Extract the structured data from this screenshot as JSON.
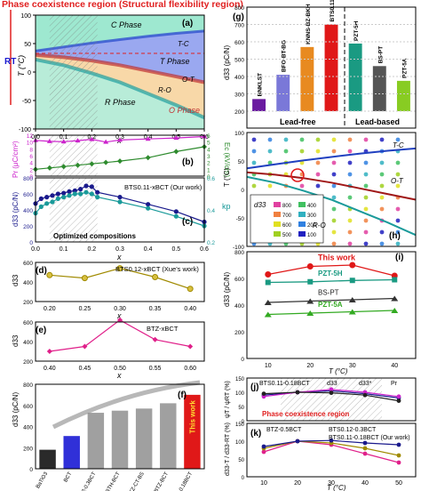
{
  "banner": {
    "title": "Phase coexistence region (Structural flexibility region)"
  },
  "left_axis": {
    "rt": "RT"
  },
  "chart_data": [
    {
      "id": "a",
      "type": "area",
      "panel": "(a)",
      "xlabel": "x",
      "ylabel": "T (°C)",
      "xlim": [
        0,
        0.6
      ],
      "ylim": [
        -100,
        100
      ],
      "xticks": [
        "0.0",
        "0.1",
        "0.2",
        "0.3",
        "0.4",
        "0.5",
        "0.6"
      ],
      "yticks": [
        "-100",
        "-50",
        "0",
        "50",
        "100"
      ],
      "regions": [
        "C Phase",
        "T Phase",
        "R Phase",
        "O Phase"
      ],
      "boundary_labels": [
        "T-C",
        "O-T",
        "R-O"
      ],
      "boundaries": {
        "T-C": {
          "x": [
            0,
            0.1,
            0.2,
            0.3,
            0.4,
            0.5,
            0.6
          ],
          "y": [
            37,
            44,
            51,
            57,
            63,
            68,
            72
          ]
        },
        "O-T": {
          "x": [
            0,
            0.1,
            0.2,
            0.3,
            0.4,
            0.5,
            0.6
          ],
          "y": [
            30,
            26,
            20,
            12,
            2,
            -8,
            -18
          ]
        },
        "R-O": {
          "x": [
            0,
            0.1,
            0.2,
            0.3,
            0.4,
            0.5,
            0.6
          ],
          "y": [
            22,
            12,
            -2,
            -18,
            -38,
            -58,
            -80
          ]
        }
      },
      "shaded_x": [
        0.05,
        0.22
      ]
    },
    {
      "id": "b",
      "type": "line",
      "panel": "(b)",
      "ylabel": "Pr (μC/cm²)",
      "y2label": "Ec (kV/cm)",
      "xlim": [
        0,
        0.6
      ],
      "ylim": [
        0,
        12
      ],
      "y2lim": [
        0,
        6
      ],
      "yticks": [
        "0",
        "2",
        "4",
        "6",
        "8",
        "10",
        "12"
      ],
      "y2ticks": [
        "0",
        "1",
        "2",
        "3",
        "4",
        "5",
        "6"
      ],
      "series": [
        {
          "name": "Pr",
          "axis": "left",
          "color": "#cc22cc",
          "x": [
            0,
            0.05,
            0.1,
            0.15,
            0.2,
            0.25,
            0.3,
            0.4,
            0.5,
            0.6
          ],
          "y": [
            10.5,
            10.2,
            10.1,
            10.4,
            10.8,
            10.0,
            10.6,
            10.9,
            11.2,
            11.6
          ]
        },
        {
          "name": "Ec",
          "axis": "right",
          "color": "#2e8b2e",
          "x": [
            0,
            0.05,
            0.1,
            0.15,
            0.2,
            0.25,
            0.3,
            0.4,
            0.5,
            0.6
          ],
          "y": [
            1.0,
            1.2,
            1.4,
            1.6,
            1.8,
            2.0,
            2.2,
            2.7,
            3.6,
            4.3
          ]
        }
      ]
    },
    {
      "id": "c",
      "type": "line",
      "panel": "(c)",
      "ylabel": "d33 (pC/N)",
      "y2label": "kp",
      "xlim": [
        0,
        0.6
      ],
      "ylim": [
        0,
        800
      ],
      "y2lim": [
        0.2,
        0.6
      ],
      "yticks": [
        "0",
        "200",
        "400",
        "600",
        "800"
      ],
      "y2ticks": [
        "0.2",
        "0.4",
        "0.6"
      ],
      "xticks": [
        "0.0",
        "0.1",
        "0.2",
        "0.3",
        "0.4",
        "0.5",
        "0.6"
      ],
      "xlabel": "x",
      "legend": "BTS0.11-xBCT (Our work)",
      "annotation": "Optimized compositions",
      "series": [
        {
          "name": "d33",
          "axis": "left",
          "color": "#1a1a8c",
          "x": [
            0,
            0.02,
            0.04,
            0.06,
            0.08,
            0.1,
            0.12,
            0.14,
            0.16,
            0.18,
            0.2,
            0.22,
            0.3,
            0.4,
            0.5,
            0.6
          ],
          "y": [
            480,
            540,
            560,
            580,
            600,
            610,
            630,
            640,
            660,
            700,
            690,
            620,
            560,
            470,
            380,
            250
          ]
        },
        {
          "name": "kp",
          "axis": "right",
          "color": "#1a9a9a",
          "x": [
            0,
            0.02,
            0.04,
            0.06,
            0.08,
            0.1,
            0.12,
            0.14,
            0.16,
            0.18,
            0.2,
            0.22,
            0.3,
            0.4,
            0.5,
            0.6
          ],
          "y": [
            0.38,
            0.42,
            0.44,
            0.45,
            0.47,
            0.48,
            0.49,
            0.5,
            0.5,
            0.51,
            0.5,
            0.48,
            0.45,
            0.41,
            0.36,
            0.3
          ]
        }
      ]
    },
    {
      "id": "d",
      "type": "line",
      "panel": "(d)",
      "ylabel": "d33",
      "xlabel": "x",
      "xlim": [
        0.18,
        0.42
      ],
      "ylim": [
        200,
        600
      ],
      "xticks": [
        "0.20",
        "0.25",
        "0.30",
        "0.35",
        "0.40"
      ],
      "yticks": [
        "200",
        "400",
        "600"
      ],
      "legend": "BTS0.12-xBCT (Xue's work)",
      "series": [
        {
          "name": "BTS0.12-xBCT",
          "color": "#a08a00",
          "x": [
            0.2,
            0.25,
            0.3,
            0.35,
            0.4
          ],
          "y": [
            470,
            440,
            540,
            450,
            330
          ]
        }
      ]
    },
    {
      "id": "e",
      "type": "line",
      "panel": "(e)",
      "ylabel": "d33",
      "xlabel": "x",
      "xlim": [
        0.38,
        0.62
      ],
      "ylim": [
        200,
        600
      ],
      "xticks": [
        "0.40",
        "0.45",
        "0.50",
        "0.55",
        "0.60"
      ],
      "yticks": [
        "200",
        "400",
        "600"
      ],
      "legend": "BTZ-xBCT",
      "series": [
        {
          "name": "BTZ-xBCT",
          "color": "#e0208a",
          "x": [
            0.4,
            0.45,
            0.5,
            0.55,
            0.6
          ],
          "y": [
            300,
            350,
            620,
            420,
            350
          ]
        }
      ]
    },
    {
      "id": "f",
      "type": "bar",
      "panel": "(f)",
      "ylabel": "d33 (pC/N)",
      "ylim": [
        0,
        800
      ],
      "yticks": [
        "0",
        "200",
        "400",
        "600",
        "800"
      ],
      "categories": [
        "BaTiO3",
        "BCT",
        "BTS0.12-0.3BCT",
        "BTH-BCT",
        "BTZ-CT-BS",
        "BTZ-BCT",
        "BTS0.11-0.18BCT"
      ],
      "values": [
        180,
        310,
        530,
        550,
        570,
        620,
        700
      ],
      "colors": [
        "#2a2a2a",
        "#3030d8",
        "#a0a0a0",
        "#a0a0a0",
        "#a0a0a0",
        "#a0a0a0",
        "#e01818"
      ],
      "highlight_label": "This work"
    },
    {
      "id": "g",
      "type": "bar",
      "panel": "(g)",
      "ylabel": "d33 (pC/N)",
      "ylim": [
        200,
        800
      ],
      "yticks": [
        "200",
        "300",
        "400",
        "500",
        "600",
        "700",
        "800"
      ],
      "groups": [
        "Lead-free",
        "Lead-based"
      ],
      "categories": [
        "BNKLST",
        "BFO-BT-BG",
        "KNNS-BZ-BKH",
        "BTS0.11-0.18BCT",
        "PZT-5H",
        "BS-PT",
        "PZT-5A"
      ],
      "values": [
        270,
        410,
        570,
        700,
        590,
        460,
        375
      ],
      "colors": [
        "#6a1aa0",
        "#7a78d8",
        "#e88a20",
        "#e01818",
        "#1a9a82",
        "#555555",
        "#88cc22"
      ]
    },
    {
      "id": "h",
      "type": "heatmap",
      "panel": "(h)",
      "xlabel": "x",
      "ylabel": "T (°C)",
      "xlim": [
        0,
        0.6
      ],
      "ylim": [
        -100,
        100
      ],
      "yticks": [
        "-100",
        "-50",
        "0",
        "50",
        "100"
      ],
      "legend_title": "d33",
      "legend_values": [
        "800",
        "700",
        "600",
        "500",
        "400",
        "300",
        "200",
        "100"
      ],
      "boundary_labels": [
        "T-C",
        "O-T",
        "R-O"
      ]
    },
    {
      "id": "i",
      "type": "line",
      "panel": "(i)",
      "ylabel": "d33 (pC/N)",
      "xlabel": "T (°C)",
      "xlim": [
        5,
        45
      ],
      "ylim": [
        0,
        800
      ],
      "xticks": [
        "10",
        "20",
        "30",
        "40"
      ],
      "yticks": [
        "0",
        "200",
        "400",
        "600",
        "800"
      ],
      "series": [
        {
          "name": "This work",
          "color": "#e01818",
          "x": [
            10,
            20,
            30,
            40
          ],
          "y": [
            630,
            690,
            700,
            620
          ]
        },
        {
          "name": "PZT-5H",
          "color": "#1a9a82",
          "x": [
            10,
            20,
            30,
            40
          ],
          "y": [
            570,
            575,
            585,
            590
          ]
        },
        {
          "name": "BS-PT",
          "color": "#333333",
          "x": [
            10,
            20,
            30,
            40
          ],
          "y": [
            420,
            430,
            440,
            450
          ]
        },
        {
          "name": "PZT-5A",
          "color": "#33aa22",
          "x": [
            10,
            20,
            30,
            40
          ],
          "y": [
            330,
            340,
            350,
            360
          ]
        }
      ]
    },
    {
      "id": "j",
      "type": "line",
      "panel": "(j)",
      "ylabel": "ψT / ψRT (%)",
      "xlim": [
        5,
        55
      ],
      "ylim": [
        0,
        150
      ],
      "yticks": [
        "0",
        "50",
        "100",
        "150"
      ],
      "legend": [
        "BTS0.11-0.18BCT",
        "d33",
        "d33*",
        "Pr"
      ],
      "annotation": "Phase coexistence region",
      "series": [
        {
          "name": "d33",
          "color": "#1a1a8c",
          "x": [
            10,
            20,
            30,
            40,
            50
          ],
          "y": [
            90,
            100,
            105,
            95,
            80
          ]
        },
        {
          "name": "d33*",
          "color": "#cc22cc",
          "x": [
            10,
            20,
            30,
            40,
            50
          ],
          "y": [
            85,
            100,
            110,
            100,
            85
          ]
        },
        {
          "name": "Pr",
          "color": "#222222",
          "x": [
            10,
            20,
            30,
            40,
            50
          ],
          "y": [
            95,
            100,
            98,
            90,
            70
          ]
        }
      ]
    },
    {
      "id": "k",
      "type": "line",
      "panel": "(k)",
      "ylabel": "d33-T / d33-RT (%)",
      "xlabel": "T (°C)",
      "xlim": [
        5,
        55
      ],
      "ylim": [
        0,
        150
      ],
      "xticks": [
        "10",
        "20",
        "30",
        "40",
        "50"
      ],
      "yticks": [
        "0",
        "50",
        "100",
        "150"
      ],
      "series": [
        {
          "name": "BTZ-0.5BCT",
          "color": "#e0208a",
          "x": [
            10,
            20,
            30,
            40,
            50
          ],
          "y": [
            70,
            100,
            90,
            65,
            40
          ]
        },
        {
          "name": "BTS0.12-0.3BCT",
          "color": "#a08a00",
          "x": [
            10,
            20,
            30,
            40,
            50
          ],
          "y": [
            80,
            100,
            95,
            80,
            60
          ]
        },
        {
          "name": "BTS0.11-0.18BCT (Our work)",
          "color": "#1a1a8c",
          "x": [
            10,
            20,
            30,
            40,
            50
          ],
          "y": [
            85,
            100,
            102,
            95,
            90
          ]
        }
      ]
    }
  ]
}
